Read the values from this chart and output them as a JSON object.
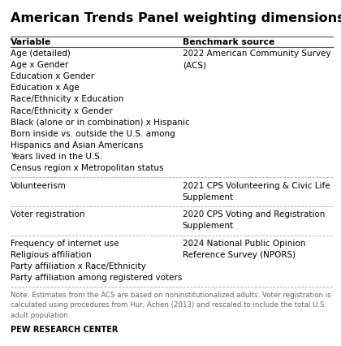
{
  "title": "American Trends Panel weighting dimensions",
  "col1_header": "Variable",
  "col2_header": "Benchmark source",
  "rows": [
    {
      "variables": [
        "Age (detailed)",
        "Age x Gender",
        "Education x Gender",
        "Education x Age",
        "Race/Ethnicity x Education",
        "Race/Ethnicity x Gender",
        "Black (alone or in combination) x Hispanic",
        "Born inside vs. outside the U.S. among",
        "Hispanics and Asian Americans",
        "Years lived in the U.S.",
        "Census region x Metropolitan status"
      ],
      "benchmark": [
        "2022 American Community Survey",
        "(ACS)"
      ]
    },
    {
      "variables": [
        "Volunteerism"
      ],
      "benchmark": [
        "2021 CPS Volunteering & Civic Life",
        "Supplement"
      ]
    },
    {
      "variables": [
        "Voter registration"
      ],
      "benchmark": [
        "2020 CPS Voting and Registration",
        "Supplement"
      ]
    },
    {
      "variables": [
        "Frequency of internet use",
        "Religious affiliation",
        "Party affiliation x Race/Ethnicity",
        "Party affiliation among registered voters"
      ],
      "benchmark": [
        "2024 National Public Opinion",
        "Reference Survey (NPORS)"
      ]
    }
  ],
  "note_lines": [
    "Note: Estimates from the ACS are based on noninstitutionalized adults. Voter registration is",
    "calculated using procedures from Hur, Achen (2013) and rescaled to include the total U.S.",
    "adult population."
  ],
  "footer": "PEW RESEARCH CENTER",
  "bg_color": "#ffffff",
  "text_color": "#000000",
  "note_color": "#666666",
  "header_line_color": "#555555",
  "divider_color": "#aaaaaa",
  "title_fontsize": 11.5,
  "header_fontsize": 7.8,
  "body_fontsize": 7.5,
  "note_fontsize": 6.2,
  "footer_fontsize": 7.0,
  "col_split": 0.535
}
